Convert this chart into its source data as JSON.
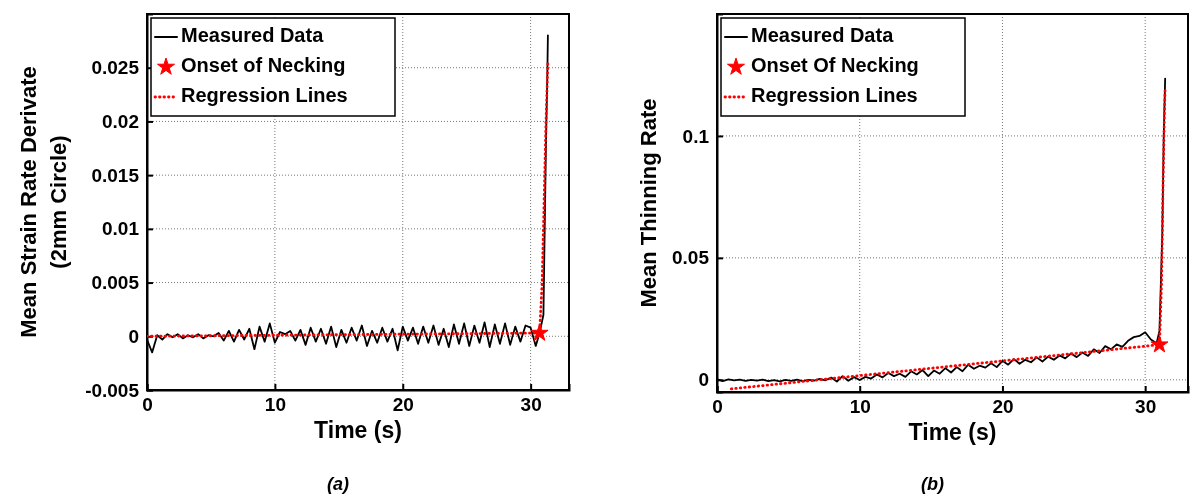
{
  "chart_data": [
    {
      "type": "line",
      "xlabel": "Time (s)",
      "ylabel": "Mean Strain Rate Derivate\n(2mm Circle)",
      "annotations": [
        "(a)"
      ],
      "xlim": [
        0,
        33
      ],
      "ylim": [
        -0.005,
        0.03
      ],
      "xticks": [
        0,
        10,
        20,
        30
      ],
      "yticks": [
        -0.005,
        0,
        0.005,
        0.01,
        0.015,
        0.02,
        0.025
      ],
      "grid": true,
      "legend": "top left",
      "series": [
        {
          "name": "Measured Data",
          "type": "line",
          "color": "#000000",
          "line_style": "solid",
          "x": [
            0,
            0.4,
            0.8,
            1.2,
            1.6,
            2.0,
            2.4,
            2.8,
            3.2,
            3.6,
            4.0,
            4.4,
            4.8,
            5.2,
            5.6,
            6.0,
            6.4,
            6.8,
            7.2,
            7.6,
            8.0,
            8.4,
            8.8,
            9.2,
            9.6,
            10.0,
            10.4,
            10.8,
            11.2,
            11.6,
            12.0,
            12.4,
            12.8,
            13.2,
            13.6,
            14.0,
            14.4,
            14.8,
            15.2,
            15.6,
            16.0,
            16.4,
            16.8,
            17.2,
            17.6,
            18.0,
            18.4,
            18.8,
            19.2,
            19.6,
            20.0,
            20.4,
            20.8,
            21.2,
            21.6,
            22.0,
            22.4,
            22.8,
            23.2,
            23.6,
            24.0,
            24.4,
            24.8,
            25.2,
            25.6,
            26.0,
            26.4,
            26.8,
            27.2,
            27.6,
            28.0,
            28.4,
            28.8,
            29.2,
            29.6,
            30.0,
            30.4,
            30.7,
            31.0,
            31.2,
            31.3,
            31.35
          ],
          "values": [
            -0.0003,
            -0.0015,
            0.0001,
            -0.0003,
            0.0002,
            -0.0001,
            0.0002,
            -0.0002,
            0.0001,
            -0.0001,
            0.0002,
            -0.0002,
            0.0001,
            0,
            0.0003,
            -0.0004,
            0.0005,
            -0.0005,
            0.0006,
            -0.0003,
            0.0007,
            -0.0012,
            0.0009,
            -0.0005,
            0.0012,
            -0.0006,
            0.0004,
            0.0002,
            0.0005,
            -0.0004,
            0.0006,
            -0.0008,
            0.0008,
            -0.0005,
            0.0007,
            -0.0007,
            0.0009,
            -0.001,
            0.0006,
            -0.0006,
            0.0008,
            -0.0004,
            0.001,
            -0.0009,
            0.0005,
            -0.0006,
            0.0008,
            -0.0005,
            0.0007,
            -0.0013,
            0.0009,
            -0.0004,
            0.0008,
            -0.0007,
            0.0009,
            -0.0006,
            0.001,
            -0.0008,
            0.0007,
            -0.001,
            0.0011,
            -0.0007,
            0.0012,
            -0.0009,
            0.001,
            -0.0006,
            0.0013,
            -0.001,
            0.0011,
            -0.0007,
            0.0012,
            -0.0008,
            0.0009,
            -0.0005,
            0.001,
            0.0008,
            -0.0009,
            0.0003,
            0.002,
            0.018,
            0.024,
            0.028
          ]
        },
        {
          "name": "Onset of Necking",
          "type": "scatter",
          "color": "#ff0000",
          "marker": "star",
          "x": [
            30.7
          ],
          "values": [
            0.0003
          ]
        },
        {
          "name": "Regression Lines",
          "type": "line",
          "color": "#ff0000",
          "line_style": "dotted",
          "x": [
            0,
            30.7,
            30.9,
            31.1,
            31.2,
            31.35
          ],
          "values": [
            0,
            0.0003,
            0.005,
            0.015,
            0.02,
            0.0255
          ]
        }
      ]
    },
    {
      "type": "line",
      "xlabel": "Time (s)",
      "ylabel": "Mean Thinning Rate",
      "annotations": [
        "(b)"
      ],
      "xlim": [
        0,
        33
      ],
      "ylim": [
        -0.005,
        0.15
      ],
      "xticks": [
        0,
        10,
        20,
        30
      ],
      "yticks": [
        0,
        0.05,
        0.1
      ],
      "grid": true,
      "legend": "top left",
      "series": [
        {
          "name": "Measured Data",
          "type": "line",
          "color": "#000000",
          "line_style": "solid",
          "x": [
            0,
            0.4,
            0.8,
            1.2,
            1.6,
            2.0,
            2.4,
            2.8,
            3.2,
            3.6,
            4.0,
            4.4,
            4.8,
            5.2,
            5.6,
            6.0,
            6.4,
            6.8,
            7.2,
            7.6,
            8.0,
            8.4,
            8.8,
            9.2,
            9.6,
            10.0,
            10.4,
            10.8,
            11.2,
            11.6,
            12.0,
            12.4,
            12.8,
            13.2,
            13.6,
            14.0,
            14.4,
            14.8,
            15.2,
            15.6,
            16.0,
            16.4,
            16.8,
            17.2,
            17.6,
            18.0,
            18.4,
            18.8,
            19.2,
            19.6,
            20.0,
            20.4,
            20.8,
            21.2,
            21.6,
            22.0,
            22.4,
            22.8,
            23.2,
            23.6,
            24.0,
            24.4,
            24.8,
            25.2,
            25.6,
            26.0,
            26.4,
            26.8,
            27.2,
            27.6,
            28.0,
            28.4,
            28.8,
            29.2,
            29.6,
            30.0,
            30.4,
            30.8,
            31.0,
            31.2,
            31.3,
            31.4
          ],
          "values": [
            0.0003,
            -0.0005,
            0.0002,
            -0.0002,
            0.0001,
            -0.0004,
            0,
            -0.0003,
            0.0001,
            -0.0005,
            -0.0001,
            -0.0006,
            0,
            -0.0004,
            0.0001,
            -0.0005,
            0,
            -0.0003,
            0.0004,
            -0.0002,
            0.0009,
            -0.0007,
            0.0015,
            -0.0004,
            0.0011,
            -0.0001,
            0.0012,
            0.0005,
            0.0022,
            0.001,
            0.0028,
            0.0015,
            0.0025,
            0.0012,
            0.0035,
            0.0022,
            0.004,
            0.0015,
            0.0038,
            0.0025,
            0.0048,
            0.003,
            0.0052,
            0.0035,
            0.0062,
            0.0045,
            0.0058,
            0.005,
            0.0068,
            0.0052,
            0.0078,
            0.0062,
            0.0085,
            0.0066,
            0.0082,
            0.0072,
            0.0092,
            0.0075,
            0.0095,
            0.0082,
            0.01,
            0.0088,
            0.0108,
            0.0093,
            0.0112,
            0.0098,
            0.0125,
            0.011,
            0.0138,
            0.0125,
            0.0145,
            0.0135,
            0.016,
            0.0175,
            0.018,
            0.0195,
            0.0165,
            0.015,
            0.02,
            0.06,
            0.1,
            0.1235
          ]
        },
        {
          "name": "Onset Of Necking",
          "type": "scatter",
          "color": "#ff0000",
          "marker": "star",
          "x": [
            31.0
          ],
          "values": [
            0.0144
          ]
        },
        {
          "name": "Regression Lines",
          "type": "line",
          "color": "#ff0000",
          "line_style": "dotted",
          "x": [
            1,
            31.0,
            31.15,
            31.25,
            31.35,
            31.4
          ],
          "values": [
            -0.0037,
            0.0144,
            0.04,
            0.08,
            0.11,
            0.12
          ]
        }
      ]
    }
  ]
}
